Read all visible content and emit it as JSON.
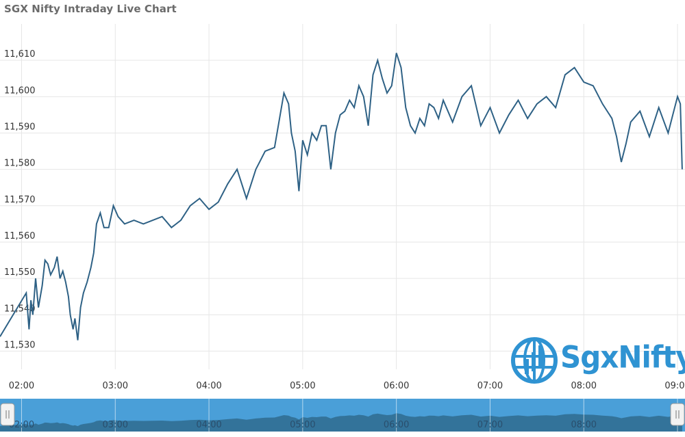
{
  "logo": {
    "text": "SgxNifty",
    "icon": "globe-logo-icon"
  },
  "colors": {
    "line": "#2e6185",
    "grid": "#e6e6e6",
    "navigator_fill": "#4a9fd8",
    "navigator_series": "#2f6b8f",
    "logo": "#2f93d2"
  },
  "chart_data": {
    "type": "line",
    "title": "SGX Nifty Intraday Live Chart",
    "ylim": [
      11525,
      11620
    ],
    "yticks": [
      {
        "value": 11530,
        "label": "11,530"
      },
      {
        "value": 11540,
        "label": "11,540"
      },
      {
        "value": 11550,
        "label": "11,550"
      },
      {
        "value": 11560,
        "label": "11,560"
      },
      {
        "value": 11570,
        "label": "11,570"
      },
      {
        "value": 11580,
        "label": "11,580"
      },
      {
        "value": 11590,
        "label": "11,590"
      },
      {
        "value": 11600,
        "label": "11,600"
      },
      {
        "value": 11610,
        "label": "11,610"
      }
    ],
    "xticks": [
      {
        "value": 2,
        "label": "02:00"
      },
      {
        "value": 3,
        "label": "03:00"
      },
      {
        "value": 4,
        "label": "04:00"
      },
      {
        "value": 5,
        "label": "05:00"
      },
      {
        "value": 6,
        "label": "06:00"
      },
      {
        "value": 7,
        "label": "07:00"
      },
      {
        "value": 8,
        "label": "08:00"
      },
      {
        "value": 9,
        "label": "09:00"
      }
    ],
    "xlim": [
      1.77,
      9.08
    ],
    "grid": true,
    "legend": "none",
    "series": [
      {
        "x": [
          1.77,
          2.05,
          2.08,
          2.1,
          2.12,
          2.15,
          2.18,
          2.22,
          2.25,
          2.28,
          2.31,
          2.35,
          2.38,
          2.41,
          2.44,
          2.47,
          2.5,
          2.52,
          2.55,
          2.57,
          2.6,
          2.63,
          2.66,
          2.7,
          2.74,
          2.77,
          2.8,
          2.84,
          2.88,
          2.93,
          2.98,
          3.03,
          3.1,
          3.2,
          3.3,
          3.4,
          3.5,
          3.6,
          3.7,
          3.8,
          3.9,
          4.0,
          4.1,
          4.2,
          4.3,
          4.4,
          4.5,
          4.6,
          4.7,
          4.8,
          4.85,
          4.88,
          4.92,
          4.96,
          5.0,
          5.05,
          5.1,
          5.15,
          5.2,
          5.25,
          5.3,
          5.35,
          5.4,
          5.45,
          5.5,
          5.55,
          5.6,
          5.65,
          5.7,
          5.75,
          5.8,
          5.85,
          5.9,
          5.95,
          6.0,
          6.05,
          6.1,
          6.15,
          6.2,
          6.25,
          6.3,
          6.35,
          6.4,
          6.45,
          6.5,
          6.6,
          6.7,
          6.8,
          6.9,
          7.0,
          7.1,
          7.2,
          7.3,
          7.4,
          7.5,
          7.6,
          7.7,
          7.8,
          7.9,
          8.0,
          8.1,
          8.2,
          8.3,
          8.35,
          8.4,
          8.45,
          8.5,
          8.6,
          8.7,
          8.8,
          8.9,
          8.95,
          9.0,
          9.03,
          9.05
        ],
        "y": [
          11534,
          11546,
          11536,
          11544,
          11540,
          11550,
          11542,
          11548,
          11555,
          11554,
          11551,
          11553,
          11556,
          11550,
          11552,
          11549,
          11545,
          11540,
          11536,
          11539,
          11533,
          11542,
          11546,
          11549,
          11553,
          11557,
          11565,
          11568,
          11564,
          11564,
          11570,
          11567,
          11565,
          11566,
          11565,
          11566,
          11567,
          11564,
          11566,
          11570,
          11572,
          11569,
          11571,
          11576,
          11580,
          11572,
          11580,
          11585,
          11586,
          11601,
          11598,
          11590,
          11585,
          11574,
          11588,
          11584,
          11590,
          11588,
          11592,
          11592,
          11580,
          11590,
          11595,
          11596,
          11599,
          11597,
          11603,
          11600,
          11592,
          11606,
          11610,
          11605,
          11601,
          11603,
          11612,
          11608,
          11597,
          11592,
          11590,
          11594,
          11592,
          11598,
          11597,
          11594,
          11599,
          11593,
          11600,
          11603,
          11592,
          11597,
          11590,
          11595,
          11599,
          11594,
          11598,
          11600,
          11597,
          11606,
          11608,
          11604,
          11603,
          11598,
          11594,
          11589,
          11582,
          11587,
          11593,
          11596,
          11589,
          11597,
          11590,
          11595,
          11600,
          11598,
          11580
        ]
      }
    ]
  }
}
